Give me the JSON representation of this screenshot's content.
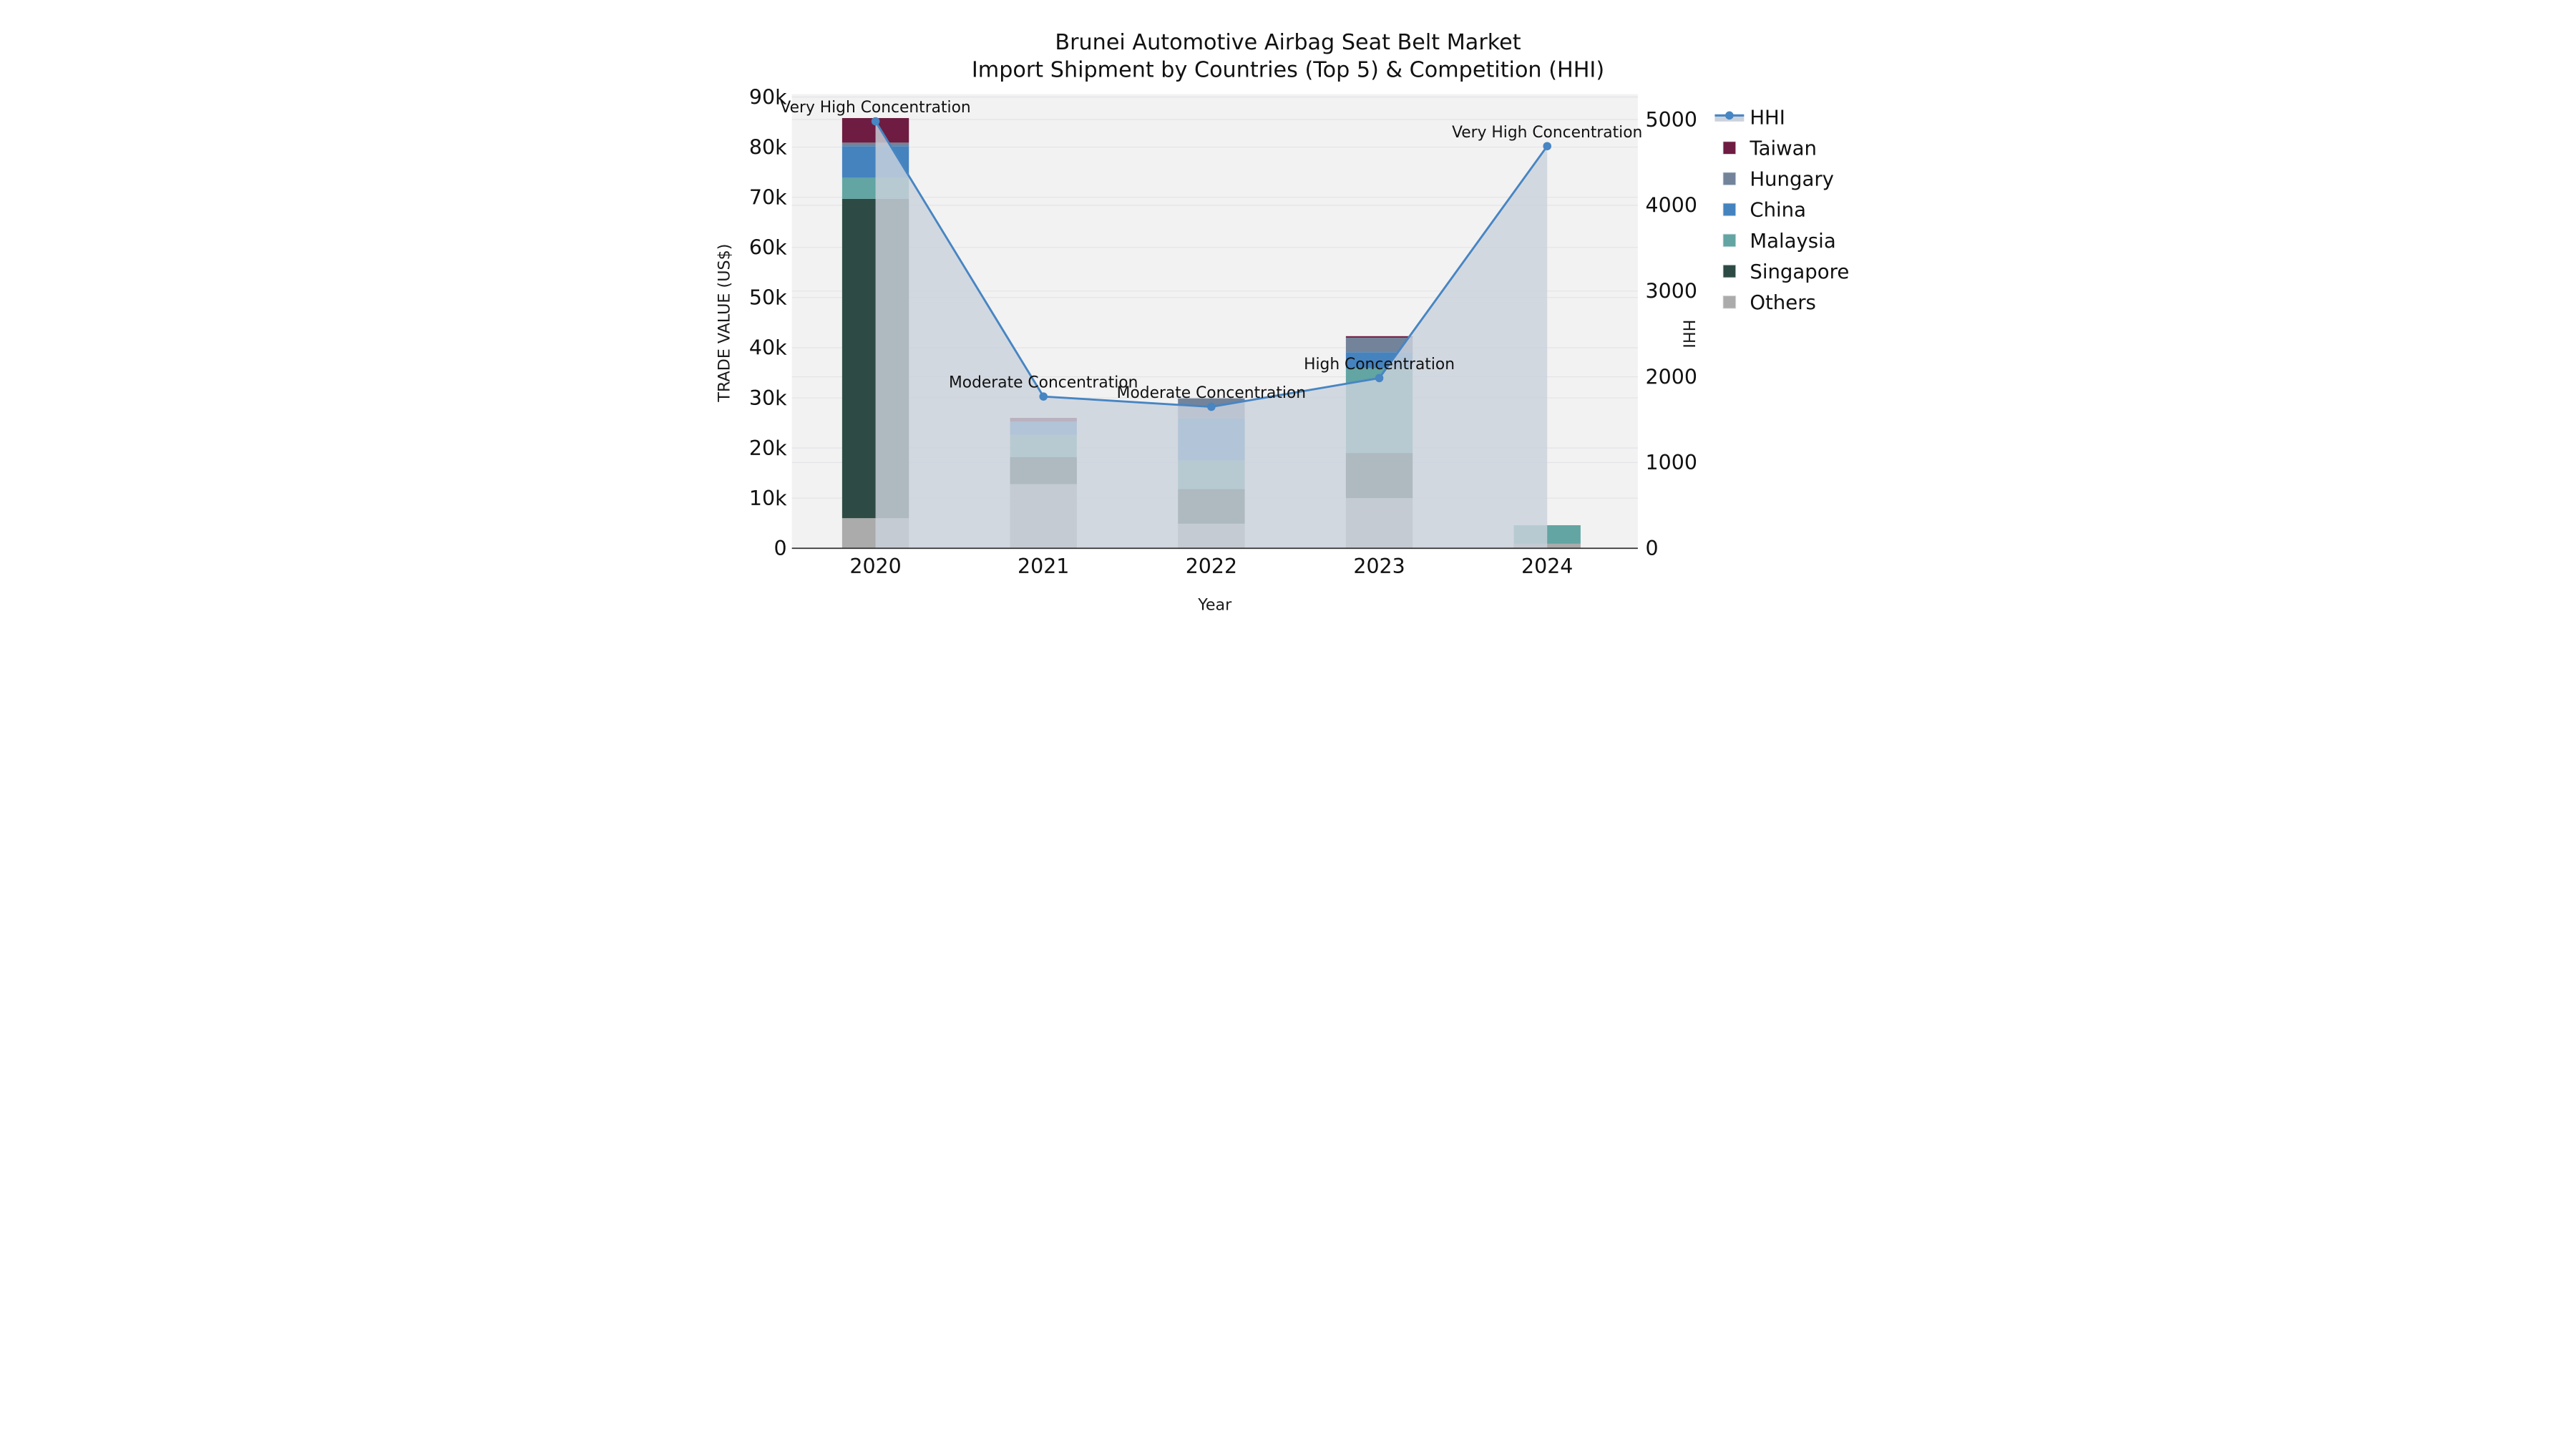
{
  "chart_data": {
    "type": "bar+line",
    "title": "Brunei Automotive Airbag Seat Belt Market",
    "subtitle": "Import Shipment by Countries (Top 5) & Competition (HHI)",
    "xlabel": "Year",
    "ylabel_left": "TRADE VALUE (US$)",
    "ylabel_right": "HHI",
    "categories": [
      "2020",
      "2021",
      "2022",
      "2023",
      "2024"
    ],
    "stack_note": "series listed bottom-to-top of the stacked bars",
    "series": [
      {
        "name": "Others",
        "color": "#ABABAB",
        "values": [
          6000,
          12800,
          4900,
          10000,
          900
        ]
      },
      {
        "name": "Singapore",
        "color": "#2E4A44",
        "values": [
          63700,
          5400,
          6900,
          9000,
          0
        ]
      },
      {
        "name": "Malaysia",
        "color": "#62A5A2",
        "values": [
          4200,
          4400,
          5700,
          16900,
          3700
        ]
      },
      {
        "name": "China",
        "color": "#4583BF",
        "values": [
          6300,
          2700,
          8400,
          3200,
          0
        ]
      },
      {
        "name": "Hungary",
        "color": "#73839A",
        "values": [
          700,
          0,
          4000,
          2900,
          0
        ]
      },
      {
        "name": "Taiwan",
        "color": "#6E1C41",
        "values": [
          4900,
          700,
          0,
          300,
          0
        ]
      }
    ],
    "bar_totals": [
      85800,
      26000,
      29900,
      42300,
      4600
    ],
    "line_series": {
      "name": "HHI",
      "color": "#4785C3",
      "area_color": "#CBD2DC",
      "area_opacity": 0.82,
      "values": [
        4980,
        1770,
        1650,
        1985,
        4690
      ]
    },
    "annotations": [
      {
        "year": "2020",
        "text": "Very High Concentration"
      },
      {
        "year": "2021",
        "text": "Moderate Concentration"
      },
      {
        "year": "2022",
        "text": "Moderate Concentration"
      },
      {
        "year": "2023",
        "text": "High Concentration"
      },
      {
        "year": "2024",
        "text": "Very High Concentration"
      }
    ],
    "y_left": {
      "min": 0,
      "max": 90000,
      "tick_labels": [
        "0",
        "10k",
        "20k",
        "30k",
        "40k",
        "50k",
        "60k",
        "70k",
        "80k",
        "90k"
      ]
    },
    "y_right": {
      "min": 0,
      "max": 5000,
      "tick_labels": [
        "0",
        "1000",
        "2000",
        "3000",
        "4000",
        "5000"
      ]
    },
    "legend": {
      "position": "right",
      "order": [
        "HHI",
        "Taiwan",
        "Hungary",
        "China",
        "Malaysia",
        "Singapore",
        "Others"
      ]
    },
    "grid": true
  },
  "theme": {
    "plot_bg": "#F2F2F2",
    "grid_color": "#E3E3E6",
    "axis_color": "#333333",
    "text_color": "#111111"
  }
}
